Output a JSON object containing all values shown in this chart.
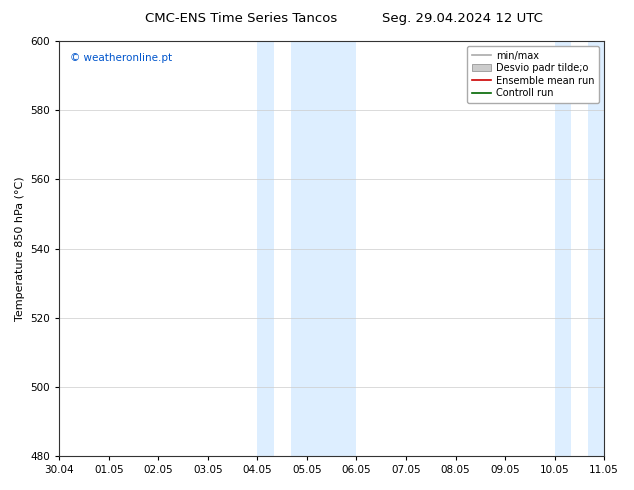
{
  "title_left": "CMC-ENS Time Series Tancos",
  "title_right": "Seg. 29.04.2024 12 UTC",
  "ylabel": "Temperature 850 hPa (°C)",
  "watermark": "© weatheronline.pt",
  "watermark_color": "#0055cc",
  "ylim": [
    480,
    600
  ],
  "yticks": [
    480,
    500,
    520,
    540,
    560,
    580,
    600
  ],
  "xtick_labels": [
    "30.04",
    "01.05",
    "02.05",
    "03.05",
    "04.05",
    "05.05",
    "06.05",
    "07.05",
    "08.05",
    "09.05",
    "10.05",
    "11.05"
  ],
  "num_xticks": 12,
  "xlim": [
    0,
    11
  ],
  "shaded_regions": [
    {
      "xmin": 4.0,
      "xmax": 4.33,
      "color": "#ddeeff"
    },
    {
      "xmin": 4.67,
      "xmax": 6.0,
      "color": "#ddeeff"
    },
    {
      "xmin": 10.0,
      "xmax": 10.33,
      "color": "#ddeeff"
    },
    {
      "xmin": 10.67,
      "xmax": 11.0,
      "color": "#ddeeff"
    }
  ],
  "legend_entries": [
    {
      "label": "min/max",
      "color": "#aaaaaa",
      "type": "line",
      "linewidth": 1.2
    },
    {
      "label": "Desvio padr tilde;o",
      "color": "#cccccc",
      "type": "patch"
    },
    {
      "label": "Ensemble mean run",
      "color": "#cc0000",
      "type": "line",
      "linewidth": 1.2
    },
    {
      "label": "Controll run",
      "color": "#006600",
      "type": "line",
      "linewidth": 1.2
    }
  ],
  "bg_color": "#ffffff",
  "grid_color": "#cccccc",
  "title_fontsize": 9.5,
  "tick_fontsize": 7.5,
  "ylabel_fontsize": 8,
  "watermark_fontsize": 7.5,
  "legend_fontsize": 7
}
